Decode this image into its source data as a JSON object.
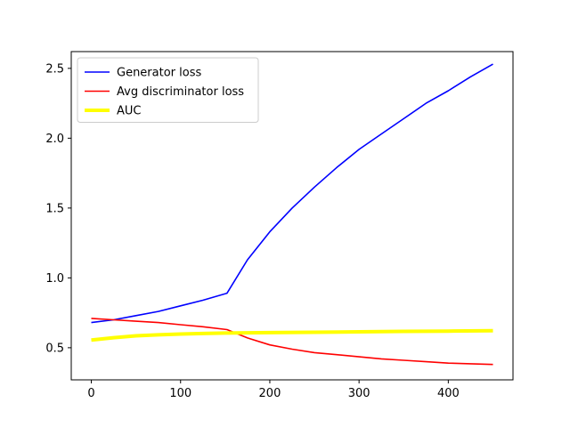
{
  "chart_data": {
    "type": "line",
    "title": "",
    "xlabel": "",
    "ylabel": "",
    "xlim": [
      -22.5,
      472.5
    ],
    "ylim": [
      0.27,
      2.62
    ],
    "xticks": [
      0,
      100,
      200,
      300,
      400
    ],
    "yticks": [
      0.5,
      1.0,
      1.5,
      2.0,
      2.5
    ],
    "xtick_labels": [
      "0",
      "100",
      "200",
      "300",
      "400"
    ],
    "ytick_labels": [
      "0.5",
      "1.0",
      "1.5",
      "2.0",
      "2.5"
    ],
    "grid": false,
    "legend_position": "top-left",
    "series": [
      {
        "name": "Generator loss",
        "color": "#0000ff",
        "line_width": "thin",
        "x": [
          0,
          25,
          50,
          75,
          100,
          125,
          152,
          175,
          200,
          225,
          250,
          275,
          300,
          325,
          350,
          375,
          400,
          425,
          450
        ],
        "y": [
          0.68,
          0.7,
          0.73,
          0.76,
          0.8,
          0.84,
          0.89,
          1.13,
          1.33,
          1.5,
          1.65,
          1.79,
          1.92,
          2.03,
          2.14,
          2.25,
          2.34,
          2.44,
          2.53
        ]
      },
      {
        "name": "Avg discriminator loss",
        "color": "#ff0000",
        "line_width": "thin",
        "x": [
          0,
          25,
          50,
          75,
          100,
          125,
          152,
          175,
          200,
          225,
          250,
          275,
          300,
          325,
          350,
          375,
          400,
          425,
          450
        ],
        "y": [
          0.71,
          0.7,
          0.69,
          0.68,
          0.665,
          0.65,
          0.63,
          0.57,
          0.52,
          0.49,
          0.465,
          0.45,
          0.435,
          0.42,
          0.41,
          0.4,
          0.39,
          0.385,
          0.38
        ]
      },
      {
        "name": "AUC",
        "color": "#ffff00",
        "line_width": "thick",
        "x": [
          0,
          25,
          50,
          75,
          100,
          125,
          150,
          175,
          200,
          250,
          300,
          350,
          400,
          450
        ],
        "y": [
          0.555,
          0.572,
          0.585,
          0.592,
          0.598,
          0.602,
          0.605,
          0.607,
          0.608,
          0.611,
          0.614,
          0.617,
          0.619,
          0.622
        ]
      }
    ]
  }
}
